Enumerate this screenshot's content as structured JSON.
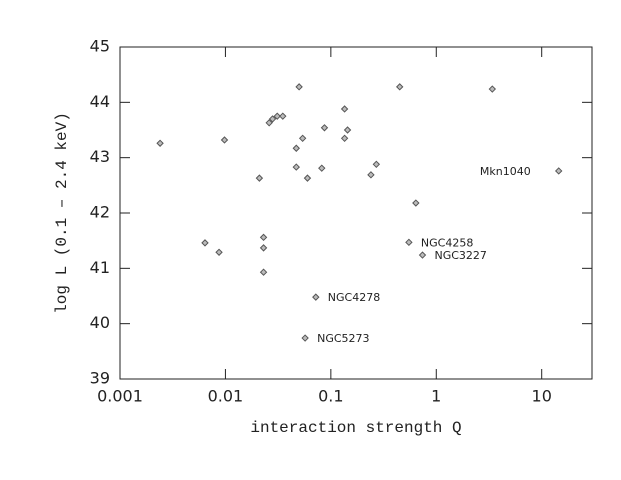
{
  "chart_data": {
    "type": "scatter",
    "x_label": "interaction strength Q",
    "y_label": "log L (0.1 – 2.4 keV)",
    "xscale": "log",
    "xlim": [
      0.001,
      30
    ],
    "ylim": [
      39,
      45
    ],
    "xticks": [
      0.001,
      0.01,
      0.1,
      1,
      10
    ],
    "yticks": [
      39,
      40,
      41,
      42,
      43,
      44,
      45
    ],
    "color": "#555555",
    "x": [
      0.0024,
      0.0098,
      0.05,
      0.45,
      3.4,
      0.031,
      0.035,
      0.026,
      0.028,
      0.135,
      0.087,
      0.144,
      0.135,
      0.054,
      0.047,
      0.021,
      0.047,
      0.06,
      0.082,
      0.27,
      0.24,
      0.64,
      14.5,
      0.0064,
      0.0087,
      0.023,
      0.023,
      0.023,
      0.55,
      0.74,
      0.072,
      0.057
    ],
    "values": [
      43.26,
      43.32,
      44.28,
      44.28,
      44.24,
      43.75,
      43.75,
      43.63,
      43.7,
      43.88,
      43.54,
      43.5,
      43.35,
      43.35,
      43.17,
      42.63,
      42.83,
      42.63,
      42.81,
      42.88,
      42.69,
      42.18,
      42.76,
      41.46,
      41.29,
      41.56,
      41.37,
      40.93,
      41.47,
      41.24,
      40.48,
      39.74
    ],
    "labels": [
      null,
      null,
      null,
      null,
      null,
      null,
      null,
      null,
      null,
      null,
      null,
      null,
      null,
      null,
      null,
      null,
      null,
      null,
      null,
      null,
      null,
      null,
      "Mkn1040",
      null,
      null,
      null,
      null,
      null,
      "NGC4258",
      "NGC3227",
      "NGC4278",
      "NGC5273"
    ]
  }
}
